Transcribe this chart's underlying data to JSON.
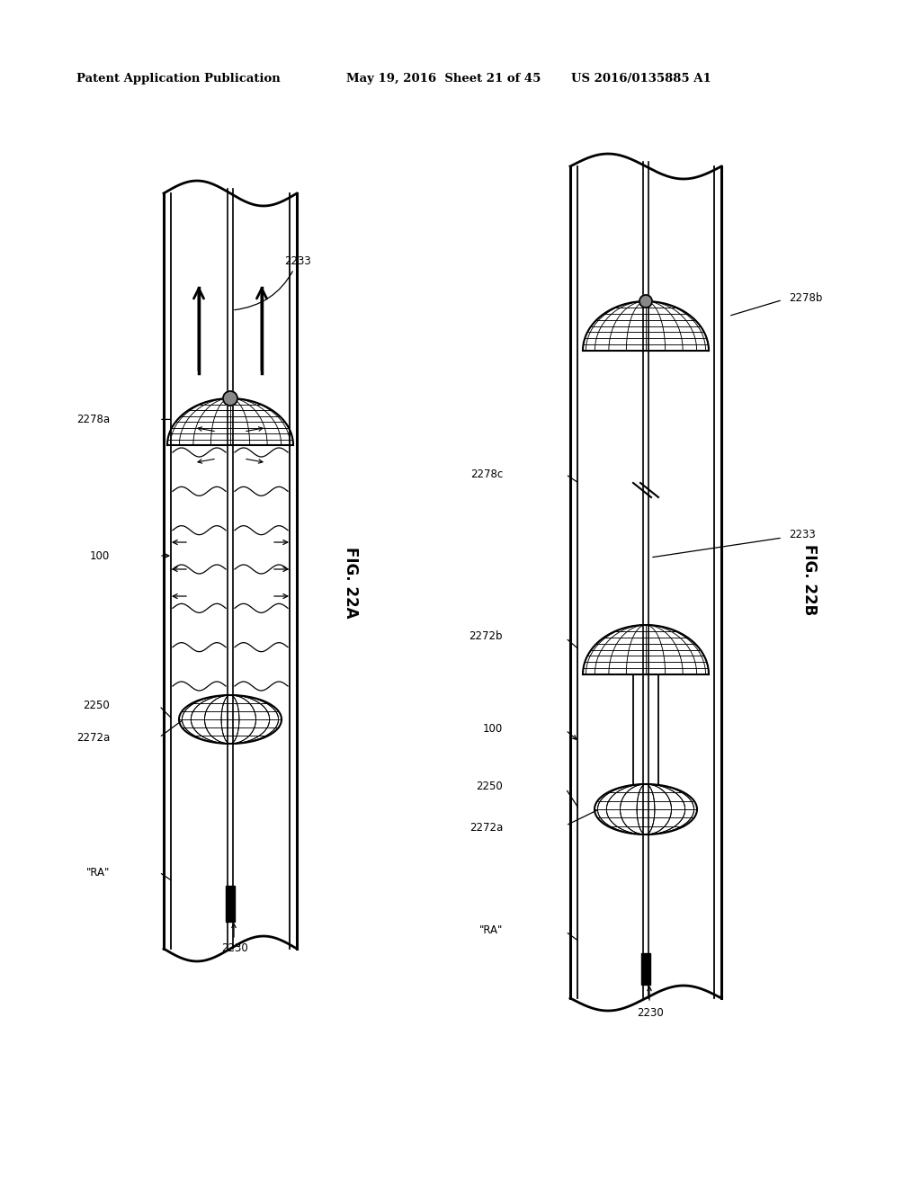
{
  "header_left": "Patent Application Publication",
  "header_mid": "May 19, 2016  Sheet 21 of 45",
  "header_right": "US 2016/0135885 A1",
  "fig_a_label": "FIG. 22A",
  "fig_b_label": "FIG. 22B",
  "bg_color": "#ffffff",
  "line_color": "#000000"
}
